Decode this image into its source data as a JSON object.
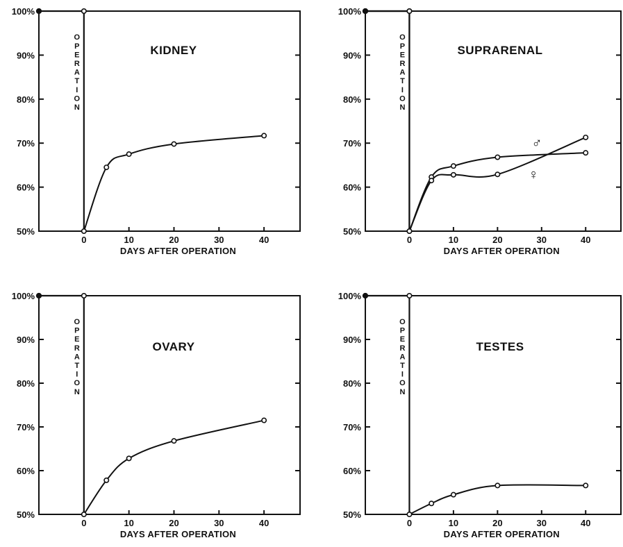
{
  "colors": {
    "ink": "#111111",
    "background": "#ffffff"
  },
  "chart_data": [
    {
      "type": "line",
      "title": "KIDNEY",
      "xlabel": "DAYS AFTER OPERATION",
      "ylabel": "",
      "xlim": [
        -10,
        48
      ],
      "ylim": [
        50,
        100
      ],
      "x_ticks": [
        0,
        10,
        20,
        30,
        40
      ],
      "x_tick_labels": [
        "0",
        "10",
        "20",
        "30",
        "40"
      ],
      "y_ticks": [
        50,
        60,
        70,
        80,
        90,
        100
      ],
      "y_tick_labels": [
        "50%",
        "60%",
        "70%",
        "80%",
        "90%",
        "100%"
      ],
      "marker_label": "OPERATION",
      "series": [
        {
          "x": [
            -10,
            0,
            0,
            5,
            10,
            20,
            40
          ],
          "y": [
            100,
            100,
            50,
            64.5,
            67.5,
            69.8,
            71.7
          ]
        }
      ]
    },
    {
      "type": "line",
      "title": "SUPRARENAL",
      "xlabel": "DAYS AFTER OPERATION",
      "ylabel": "",
      "xlim": [
        -10,
        48
      ],
      "ylim": [
        50,
        100
      ],
      "x_ticks": [
        0,
        10,
        20,
        30,
        40
      ],
      "x_tick_labels": [
        "0",
        "10",
        "20",
        "30",
        "40"
      ],
      "y_ticks": [
        50,
        60,
        70,
        80,
        90,
        100
      ],
      "y_tick_labels": [
        "50%",
        "60%",
        "70%",
        "80%",
        "90%",
        "100%"
      ],
      "marker_label": "OPERATION",
      "series": [
        {
          "name": "♂",
          "x": [
            -10,
            0,
            0,
            5,
            10,
            20,
            40
          ],
          "y": [
            100,
            100,
            50,
            62.3,
            64.8,
            66.8,
            67.8
          ]
        },
        {
          "name": "♀",
          "x": [
            -10,
            0,
            0,
            5,
            10,
            20,
            40
          ],
          "y": [
            100,
            100,
            50,
            61.5,
            62.8,
            62.9,
            71.3
          ]
        }
      ]
    },
    {
      "type": "line",
      "title": "OVARY",
      "xlabel": "DAYS AFTER OPERATION",
      "ylabel": "",
      "xlim": [
        -10,
        48
      ],
      "ylim": [
        50,
        100
      ],
      "x_ticks": [
        0,
        10,
        20,
        30,
        40
      ],
      "x_tick_labels": [
        "0",
        "10",
        "20",
        "30",
        "40"
      ],
      "y_ticks": [
        50,
        60,
        70,
        80,
        90,
        100
      ],
      "y_tick_labels": [
        "50%",
        "60%",
        "70%",
        "80%",
        "90%",
        "100%"
      ],
      "marker_label": "OPERATION",
      "series": [
        {
          "x": [
            -10,
            0,
            0,
            5,
            10,
            20,
            40
          ],
          "y": [
            100,
            100,
            50,
            57.8,
            62.8,
            66.8,
            71.5
          ]
        }
      ]
    },
    {
      "type": "line",
      "title": "TESTES",
      "xlabel": "DAYS AFTER OPERATION",
      "ylabel": "",
      "xlim": [
        -10,
        48
      ],
      "ylim": [
        50,
        100
      ],
      "x_ticks": [
        0,
        10,
        20,
        30,
        40
      ],
      "x_tick_labels": [
        "0",
        "10",
        "20",
        "30",
        "40"
      ],
      "y_ticks": [
        50,
        60,
        70,
        80,
        90,
        100
      ],
      "y_tick_labels": [
        "50%",
        "60%",
        "70%",
        "80%",
        "90%",
        "100%"
      ],
      "marker_label": "OPERATION",
      "series": [
        {
          "x": [
            -10,
            0,
            0,
            5,
            10,
            20,
            40
          ],
          "y": [
            100,
            100,
            50,
            52.5,
            54.5,
            56.6,
            56.6
          ]
        }
      ]
    }
  ]
}
